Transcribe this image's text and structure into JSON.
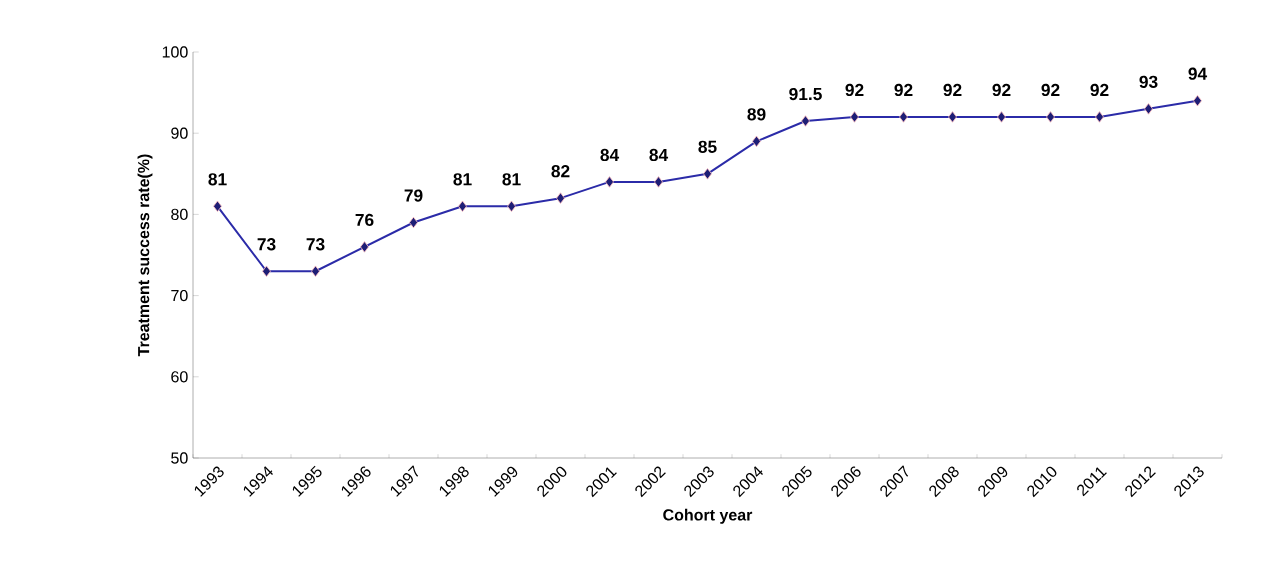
{
  "chart_data": {
    "type": "line",
    "xlabel": "Cohort year",
    "ylabel": "Treatment success rate(%)",
    "categories": [
      "1993",
      "1994",
      "1995",
      "1996",
      "1997",
      "1998",
      "1999",
      "2000",
      "2001",
      "2002",
      "2003",
      "2004",
      "2005",
      "2006",
      "2007",
      "2008",
      "2009",
      "2010",
      "2011",
      "2012",
      "2013"
    ],
    "series": [
      {
        "color": "#2b2ba8",
        "values": [
          81,
          73,
          73,
          76,
          79,
          81,
          81,
          82,
          84,
          84,
          85,
          89,
          91.5,
          92,
          92,
          92,
          92,
          92,
          92,
          93,
          94
        ]
      }
    ],
    "ylim": [
      50,
      100
    ],
    "yticks": [
      50,
      60,
      70,
      80,
      90,
      100
    ],
    "marker": "diamond",
    "line_style": "solid",
    "data_labels": true,
    "grid": false
  }
}
